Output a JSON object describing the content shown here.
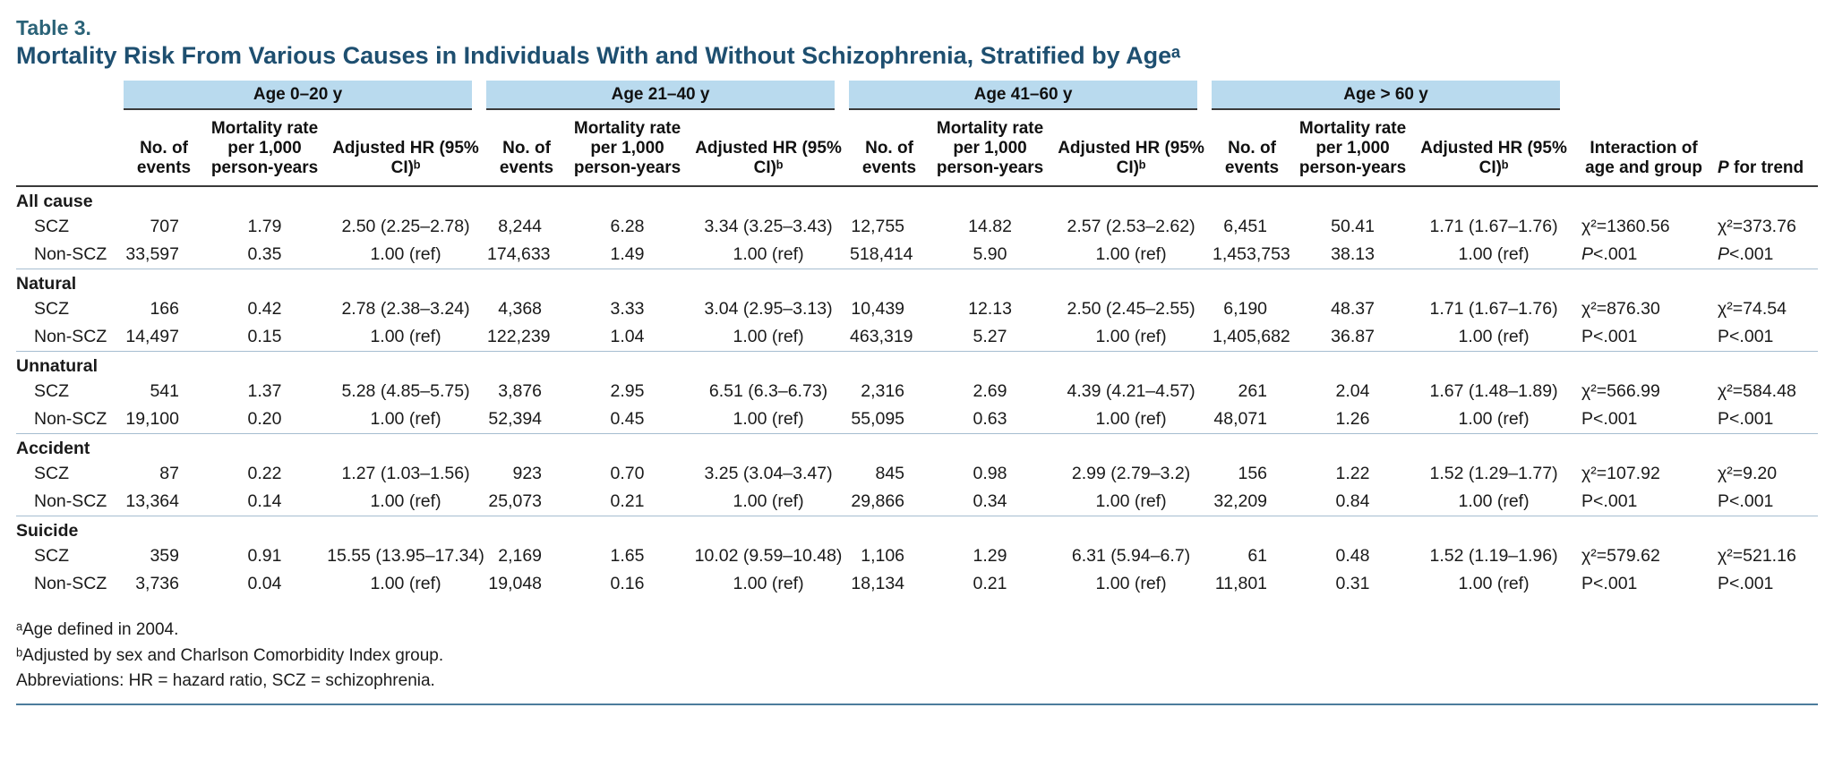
{
  "header": {
    "table_label": "Table 3.",
    "title": "Mortality Risk From Various Causes in Individuals With and Without Schizophrenia, Stratified by Ageᵃ"
  },
  "columns": {
    "age_groups": [
      "Age 0–20 y",
      "Age 21–40 y",
      "Age 41–60 y",
      "Age > 60 y"
    ],
    "subheaders": [
      "No. of events",
      "Mortality rate per 1,000 person-years",
      "Adjusted HR (95% CI)ᵇ"
    ],
    "interaction": "Interaction of age and group",
    "p_for_trend_p": "P",
    "p_for_trend_rest": " for trend"
  },
  "sections": [
    {
      "label": "All cause",
      "rows": [
        {
          "group": "SCZ",
          "values": [
            "707",
            "1.79",
            "2.50 (2.25–2.78)",
            "8,244",
            "6.28",
            "3.34 (3.25–3.43)",
            "12,755",
            "14.82",
            "2.57 (2.53–2.62)",
            "6,451",
            "50.41",
            "1.71 (1.67–1.76)"
          ],
          "interaction": "χ²=1360.56",
          "trend": "χ²=373.76",
          "p_italic": false
        },
        {
          "group": "Non-SCZ",
          "values": [
            "33,597",
            "0.35",
            "1.00 (ref)",
            "174,633",
            "1.49",
            "1.00 (ref)",
            "518,414",
            "5.90",
            "1.00 (ref)",
            "1,453,753",
            "38.13",
            "1.00 (ref)"
          ],
          "interaction": "P<.001",
          "trend": "P<.001",
          "p_italic": true
        }
      ]
    },
    {
      "label": "Natural",
      "rows": [
        {
          "group": "SCZ",
          "values": [
            "166",
            "0.42",
            "2.78 (2.38–3.24)",
            "4,368",
            "3.33",
            "3.04 (2.95–3.13)",
            "10,439",
            "12.13",
            "2.50 (2.45–2.55)",
            "6,190",
            "48.37",
            "1.71 (1.67–1.76)"
          ],
          "interaction": "χ²=876.30",
          "trend": "χ²=74.54",
          "p_italic": false
        },
        {
          "group": "Non-SCZ",
          "values": [
            "14,497",
            "0.15",
            "1.00 (ref)",
            "122,239",
            "1.04",
            "1.00 (ref)",
            "463,319",
            "5.27",
            "1.00 (ref)",
            "1,405,682",
            "36.87",
            "1.00 (ref)"
          ],
          "interaction": "P<.001",
          "trend": "P<.001",
          "p_italic": false
        }
      ]
    },
    {
      "label": "Unnatural",
      "rows": [
        {
          "group": "SCZ",
          "values": [
            "541",
            "1.37",
            "5.28 (4.85–5.75)",
            "3,876",
            "2.95",
            "6.51 (6.3–6.73)",
            "2,316",
            "2.69",
            "4.39 (4.21–4.57)",
            "261",
            "2.04",
            "1.67 (1.48–1.89)"
          ],
          "interaction": "χ²=566.99",
          "trend": "χ²=584.48",
          "p_italic": false
        },
        {
          "group": "Non-SCZ",
          "values": [
            "19,100",
            "0.20",
            "1.00 (ref)",
            "52,394",
            "0.45",
            "1.00 (ref)",
            "55,095",
            "0.63",
            "1.00 (ref)",
            "48,071",
            "1.26",
            "1.00 (ref)"
          ],
          "interaction": "P<.001",
          "trend": "P<.001",
          "p_italic": false
        }
      ]
    },
    {
      "label": "Accident",
      "rows": [
        {
          "group": "SCZ",
          "values": [
            "87",
            "0.22",
            "1.27 (1.03–1.56)",
            "923",
            "0.70",
            "3.25 (3.04–3.47)",
            "845",
            "0.98",
            "2.99 (2.79–3.2)",
            "156",
            "1.22",
            "1.52 (1.29–1.77)"
          ],
          "interaction": "χ²=107.92",
          "trend": "χ²=9.20",
          "p_italic": false
        },
        {
          "group": "Non-SCZ",
          "values": [
            "13,364",
            "0.14",
            "1.00 (ref)",
            "25,073",
            "0.21",
            "1.00 (ref)",
            "29,866",
            "0.34",
            "1.00 (ref)",
            "32,209",
            "0.84",
            "1.00 (ref)"
          ],
          "interaction": "P<.001",
          "trend": "P<.001",
          "p_italic": false
        }
      ]
    },
    {
      "label": "Suicide",
      "rows": [
        {
          "group": "SCZ",
          "values": [
            "359",
            "0.91",
            "15.55 (13.95–17.34)",
            "2,169",
            "1.65",
            "10.02 (9.59–10.48)",
            "1,106",
            "1.29",
            "6.31 (5.94–6.7)",
            "61",
            "0.48",
            "1.52 (1.19–1.96)"
          ],
          "interaction": "χ²=579.62",
          "trend": "χ²=521.16",
          "p_italic": false
        },
        {
          "group": "Non-SCZ",
          "values": [
            "3,736",
            "0.04",
            "1.00 (ref)",
            "19,048",
            "0.16",
            "1.00 (ref)",
            "18,134",
            "0.21",
            "1.00 (ref)",
            "11,801",
            "0.31",
            "1.00 (ref)"
          ],
          "interaction": "P<.001",
          "trend": "P<.001",
          "p_italic": false
        }
      ]
    }
  ],
  "footnotes": [
    "ᵃAge defined in 2004.",
    "ᵇAdjusted by sex and Charlson Comorbidity Index group.",
    "Abbreviations: HR = hazard ratio, SCZ = schizophrenia."
  ]
}
